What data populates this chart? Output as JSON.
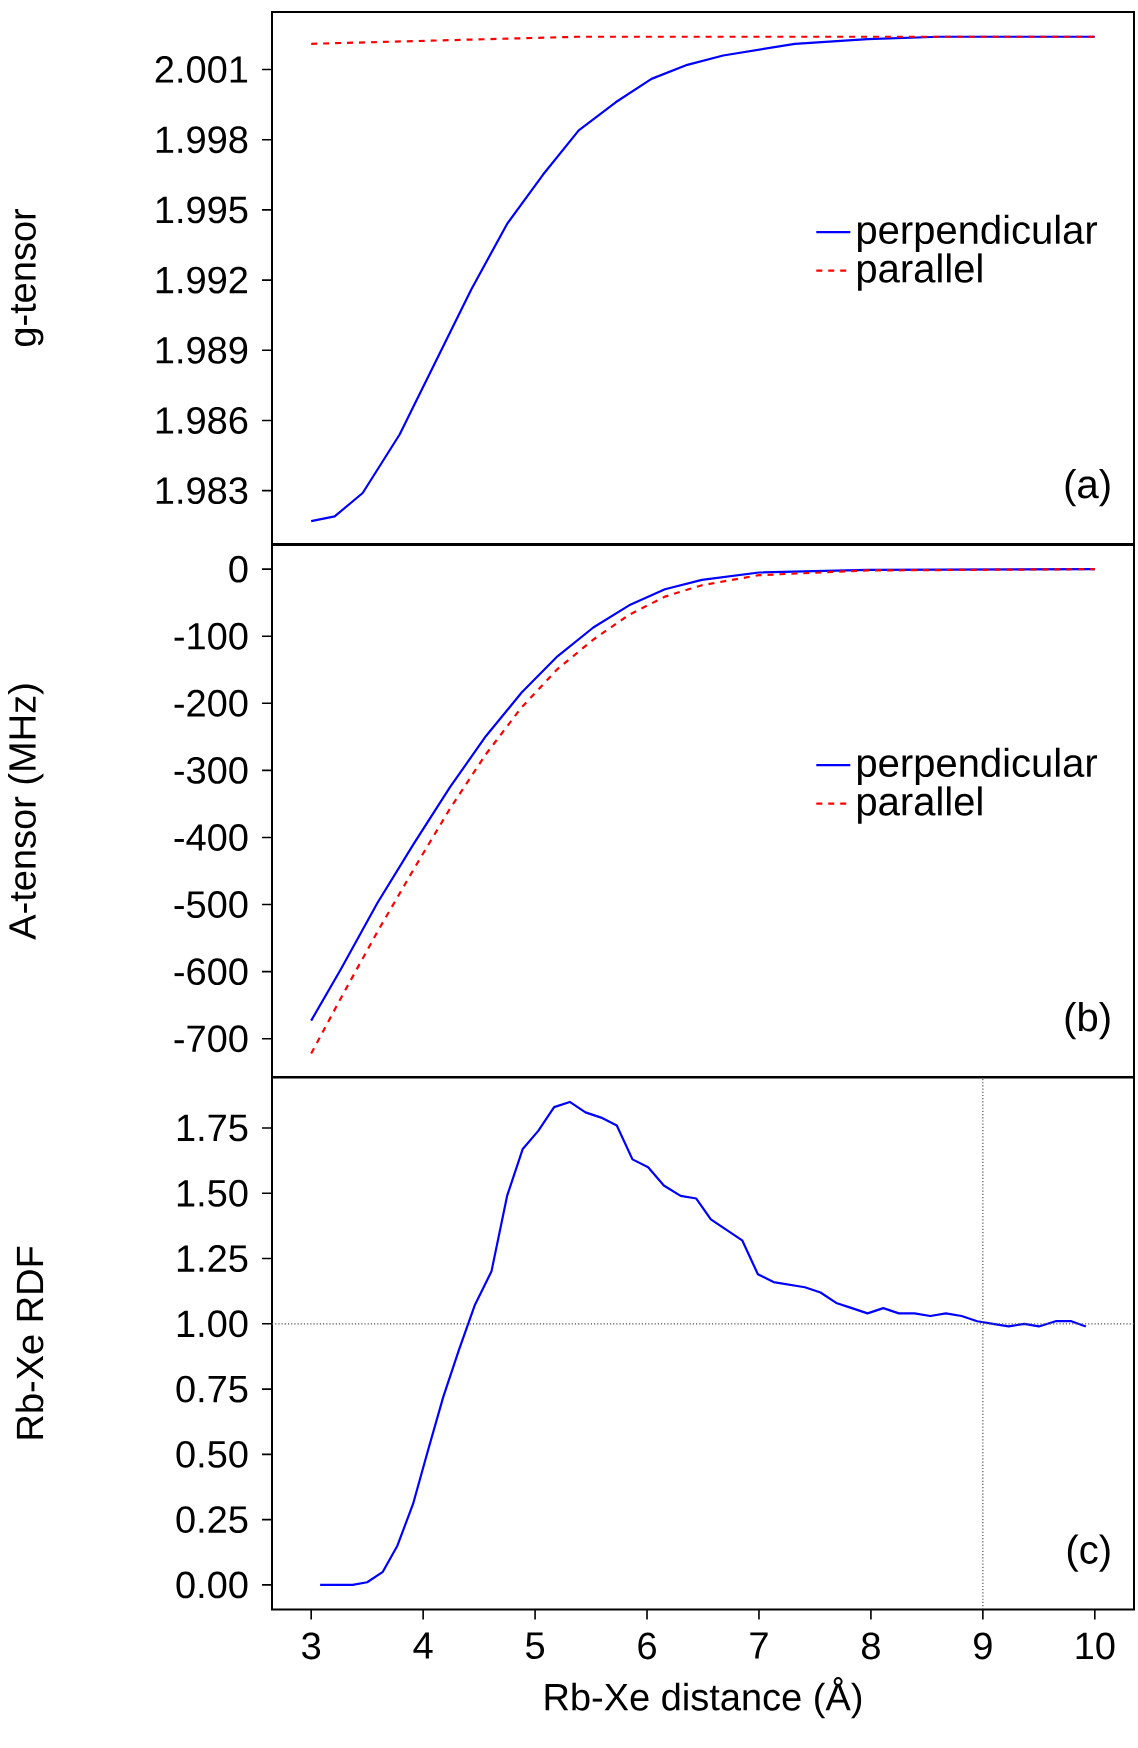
{
  "chart_data": [
    {
      "type": "line",
      "ylabel": "g-tensor",
      "xlim": [
        2.65,
        10.35
      ],
      "ylim": [
        1.98072,
        2.00346
      ],
      "tick_labels": "y",
      "legend": "center right",
      "yticks": [
        1.983,
        1.986,
        1.989,
        1.992,
        1.995,
        1.998,
        2.001
      ],
      "annotations": [
        "(a)"
      ],
      "series": [
        {
          "name": "perpendicular",
          "color": "#0000ff",
          "line_style": "solid",
          "x": [
            3.0,
            3.21,
            3.46,
            3.79,
            4.11,
            4.43,
            4.75,
            5.07,
            5.39,
            5.72,
            6.04,
            6.36,
            6.68,
            7.32,
            7.97,
            8.61,
            10.0
          ],
          "values": [
            1.9817,
            1.9819,
            1.9829,
            1.9854,
            1.9885,
            1.9916,
            1.9944,
            1.9965,
            1.9984,
            1.9996,
            2.0006,
            2.0012,
            2.0016,
            2.0021,
            2.0023,
            2.0024,
            2.0024
          ]
        },
        {
          "name": "parallel",
          "color": "#ff0000",
          "line_style": "dashed",
          "x": [
            3.0,
            5.39,
            7.32,
            10.0
          ],
          "values": [
            2.0021,
            2.0024,
            2.0024,
            2.0024
          ]
        }
      ]
    },
    {
      "type": "line",
      "ylabel": "A-tensor (MHz)",
      "xlim": [
        2.65,
        10.35
      ],
      "ylim": [
        -757,
        36
      ],
      "tick_labels": "y",
      "legend": "center right",
      "yticks": [
        -700,
        -600,
        -500,
        -400,
        -300,
        -200,
        -100,
        0
      ],
      "annotations": [
        "(b)"
      ],
      "series": [
        {
          "name": "perpendicular",
          "color": "#0000ff",
          "line_style": "solid",
          "x": [
            3.0,
            3.27,
            3.59,
            3.91,
            4.24,
            4.56,
            4.88,
            5.2,
            5.52,
            5.84,
            6.16,
            6.49,
            7.0,
            7.97,
            10.0
          ],
          "values": [
            -673,
            -595,
            -498,
            -411,
            -325,
            -249,
            -184,
            -130,
            -87,
            -54,
            -30,
            -16,
            -5,
            -1,
            0
          ]
        },
        {
          "name": "parallel",
          "color": "#ff0000",
          "line_style": "dashed",
          "x": [
            3.0,
            3.27,
            3.59,
            3.91,
            4.24,
            4.56,
            4.88,
            5.2,
            5.52,
            5.84,
            6.16,
            6.49,
            7.0,
            7.97,
            10.0
          ],
          "values": [
            -722,
            -638,
            -541,
            -449,
            -357,
            -276,
            -206,
            -149,
            -105,
            -68,
            -41,
            -24,
            -9,
            -2,
            0
          ]
        }
      ]
    },
    {
      "type": "line",
      "xlabel": "Rb-Xe distance (Å)",
      "ylabel": "Rb-Xe RDF",
      "xlim": [
        2.65,
        10.35
      ],
      "ylim": [
        -0.094,
        1.944
      ],
      "xticks": [
        3,
        4,
        5,
        6,
        7,
        8,
        9,
        10
      ],
      "yticks": [
        {
          "value": 0,
          "label": "0.00"
        },
        {
          "value": 0.25,
          "label": "0.25"
        },
        {
          "value": 0.5,
          "label": "0.50"
        },
        {
          "value": 0.75,
          "label": "0.75"
        },
        {
          "value": 1,
          "label": "1.00"
        },
        {
          "value": 1.25,
          "label": "1.25"
        },
        {
          "value": 1.5,
          "label": "1.50"
        },
        {
          "value": 1.75,
          "label": "1.75"
        }
      ],
      "annotations": [
        "(c)"
      ],
      "ref_lines": [
        {
          "axis": "y",
          "value": 1,
          "color": "#555555",
          "line_style": "dotted"
        },
        {
          "axis": "x",
          "value": 9,
          "color": "#555555",
          "line_style": "dotted"
        }
      ],
      "series": [
        {
          "color": "#0000ff",
          "line_style": "solid",
          "x": [
            3.08,
            3.37,
            3.5,
            3.64,
            3.77,
            3.91,
            4.04,
            4.18,
            4.32,
            4.46,
            4.61,
            4.75,
            4.89,
            5.03,
            5.17,
            5.31,
            5.45,
            5.59,
            5.73,
            5.87,
            6.01,
            6.15,
            6.3,
            6.44,
            6.57,
            6.71,
            6.85,
            6.99,
            7.13,
            7.27,
            7.41,
            7.55,
            7.69,
            7.83,
            7.97,
            8.11,
            8.25,
            8.39,
            8.53,
            8.67,
            8.81,
            8.95,
            9.09,
            9.23,
            9.37,
            9.5,
            9.65,
            9.79,
            9.92
          ],
          "values": [
            0.0,
            0.0,
            0.01,
            0.05,
            0.15,
            0.31,
            0.51,
            0.72,
            0.9,
            1.07,
            1.2,
            1.49,
            1.67,
            1.74,
            1.83,
            1.85,
            1.81,
            1.79,
            1.76,
            1.63,
            1.6,
            1.53,
            1.49,
            1.48,
            1.4,
            1.36,
            1.32,
            1.19,
            1.16,
            1.15,
            1.14,
            1.12,
            1.08,
            1.06,
            1.04,
            1.06,
            1.04,
            1.04,
            1.03,
            1.04,
            1.03,
            1.01,
            1.0,
            0.99,
            1.0,
            0.99,
            1.01,
            1.01,
            0.99
          ]
        }
      ]
    }
  ]
}
